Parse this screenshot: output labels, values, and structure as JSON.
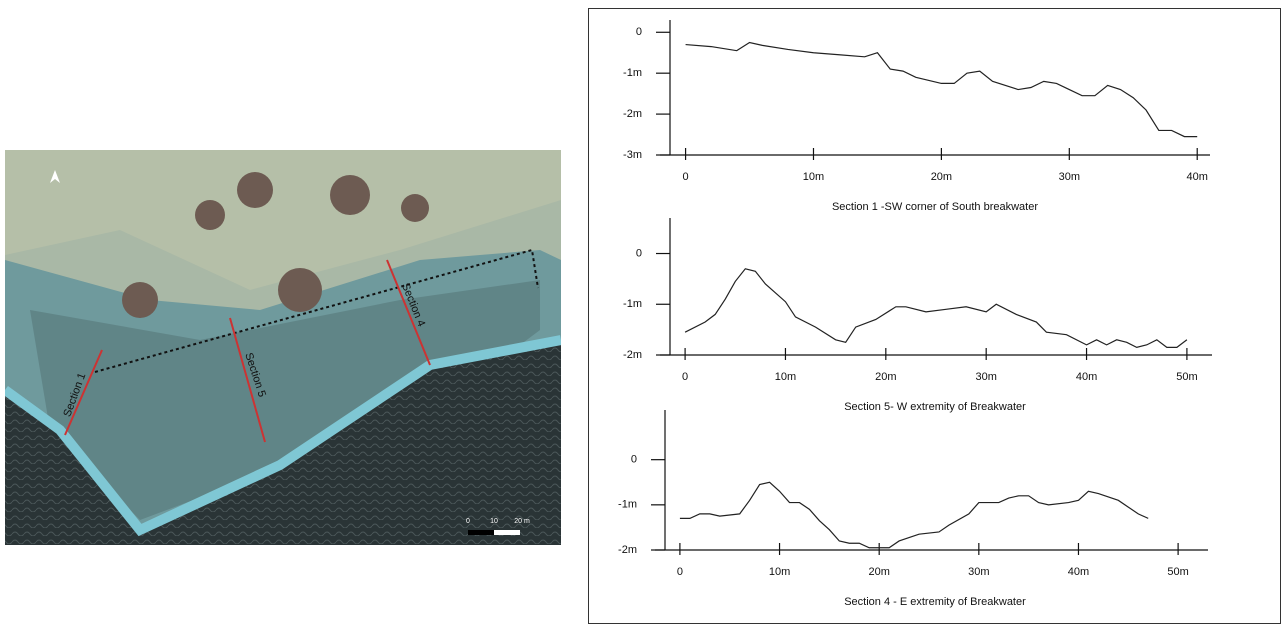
{
  "map": {
    "section_labels": [
      "Section 1",
      "Section 5",
      "Section 4"
    ],
    "scale_labels": [
      "0",
      "10",
      "20 m"
    ]
  },
  "chart_data": [
    {
      "type": "line",
      "title": "Section 1 -SW corner of South breakwater",
      "color": "#222222",
      "x": [
        0,
        2,
        4,
        5,
        6,
        8,
        10,
        12,
        14,
        15,
        16,
        17,
        18,
        20,
        21,
        22,
        23,
        24,
        26,
        27,
        28,
        29,
        30,
        31,
        32,
        33,
        34,
        35,
        36,
        37,
        38,
        39,
        40
      ],
      "values": [
        -0.3,
        -0.35,
        -0.45,
        -0.25,
        -0.32,
        -0.42,
        -0.5,
        -0.55,
        -0.6,
        -0.5,
        -0.9,
        -0.95,
        -1.1,
        -1.25,
        -1.25,
        -1.0,
        -0.95,
        -1.2,
        -1.4,
        -1.35,
        -1.2,
        -1.25,
        -1.4,
        -1.55,
        -1.55,
        -1.3,
        -1.4,
        -1.6,
        -1.9,
        -2.4,
        -2.4,
        -2.55,
        -2.55
      ],
      "xlim": [
        -2,
        41
      ],
      "ylim": [
        -3,
        0.3
      ],
      "xticks": [
        0,
        {
          "value": 10,
          "label": "10m"
        },
        {
          "value": 20,
          "label": "20m"
        },
        {
          "value": 30,
          "label": "30m"
        },
        {
          "value": 40,
          "label": "40m"
        }
      ],
      "yticks": [
        0,
        {
          "value": -1,
          "label": "-1m"
        },
        {
          "value": -2,
          "label": "-2m"
        },
        {
          "value": -3,
          "label": "-3m"
        }
      ]
    },
    {
      "type": "line",
      "title": "Section 5- W extremity of Breakwater",
      "color": "#222222",
      "x": [
        0,
        2,
        3,
        4,
        5,
        6,
        7,
        8,
        10,
        11,
        13,
        15,
        16,
        17,
        19,
        21,
        22,
        24,
        26,
        28,
        30,
        31,
        33,
        35,
        36,
        38,
        40,
        41,
        42,
        43,
        44,
        45,
        46,
        47,
        48,
        49,
        50
      ],
      "values": [
        -1.55,
        -1.35,
        -1.2,
        -0.9,
        -0.55,
        -0.3,
        -0.35,
        -0.6,
        -0.95,
        -1.25,
        -1.45,
        -1.7,
        -1.75,
        -1.45,
        -1.3,
        -1.05,
        -1.05,
        -1.15,
        -1.1,
        -1.05,
        -1.15,
        -1.0,
        -1.2,
        -1.35,
        -1.55,
        -1.6,
        -1.8,
        -1.7,
        -1.8,
        -1.7,
        -1.75,
        -1.85,
        -1.8,
        -1.7,
        -1.85,
        -1.85,
        -1.7
      ],
      "xlim": [
        -2.5,
        52.5
      ],
      "ylim": [
        -2,
        0.7
      ],
      "xticks": [
        0,
        {
          "value": 10,
          "label": "10m"
        },
        {
          "value": 20,
          "label": "20m"
        },
        {
          "value": 30,
          "label": "30m"
        },
        {
          "value": 40,
          "label": "40m"
        },
        {
          "value": 50,
          "label": "50m"
        }
      ],
      "yticks": [
        0,
        {
          "value": -1,
          "label": "-1m"
        },
        {
          "value": -2,
          "label": "-2m"
        }
      ]
    },
    {
      "type": "line",
      "title": "Section 4 - E extremity of Breakwater",
      "color": "#222222",
      "x": [
        0,
        1,
        2,
        3,
        4,
        6,
        7,
        8,
        9,
        10,
        11,
        12,
        13,
        14,
        15,
        16,
        17,
        18,
        19,
        20,
        21,
        22,
        24,
        26,
        27,
        29,
        30,
        31,
        32,
        33,
        34,
        35,
        36,
        37,
        39,
        40,
        41,
        42,
        44,
        45,
        46,
        47
      ],
      "values": [
        -1.3,
        -1.3,
        -1.2,
        -1.2,
        -1.25,
        -1.2,
        -0.9,
        -0.55,
        -0.5,
        -0.7,
        -0.95,
        -0.95,
        -1.1,
        -1.35,
        -1.55,
        -1.8,
        -1.85,
        -1.85,
        -1.95,
        -1.95,
        -1.95,
        -1.8,
        -1.65,
        -1.6,
        -1.45,
        -1.2,
        -0.95,
        -0.95,
        -0.95,
        -0.85,
        -0.8,
        -0.8,
        -0.95,
        -1.0,
        -0.95,
        -0.9,
        -0.7,
        -0.75,
        -0.9,
        -1.05,
        -1.2,
        -1.3
      ],
      "xlim": [
        -2.5,
        53
      ],
      "ylim": [
        -2,
        1.1
      ],
      "xticks": [
        0,
        {
          "value": 10,
          "label": "10m"
        },
        {
          "value": 20,
          "label": "20m"
        },
        {
          "value": 30,
          "label": "30m"
        },
        {
          "value": 40,
          "label": "40m"
        },
        {
          "value": 50,
          "label": "50m"
        }
      ],
      "yticks": [
        0,
        {
          "value": -1,
          "label": "-1m"
        },
        {
          "value": -2,
          "label": "-2m"
        }
      ]
    }
  ]
}
